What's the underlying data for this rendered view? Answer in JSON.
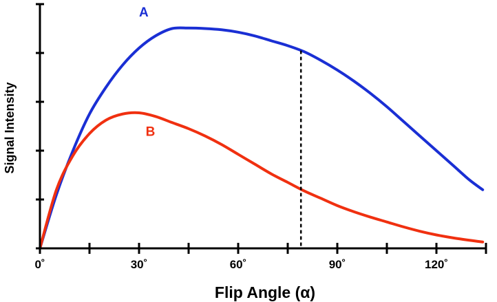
{
  "chart_data": {
    "type": "line",
    "xlabel": "Flip Angle (α)",
    "ylabel": "Signal Intensity",
    "xlim": [
      0,
      135
    ],
    "ylim": [
      0,
      100
    ],
    "x_ticks": [
      {
        "value": 0,
        "label": "0˚"
      },
      {
        "value": 30,
        "label": "30˚"
      },
      {
        "value": 60,
        "label": "60˚"
      },
      {
        "value": 90,
        "label": "90˚"
      },
      {
        "value": 120,
        "label": "120˚"
      }
    ],
    "x_minor_ticks": [
      15,
      45,
      75,
      105,
      135
    ],
    "y_ticks": [
      0,
      20,
      40,
      60,
      80,
      100
    ],
    "grid": false,
    "legend": "none",
    "series": [
      {
        "name": "A",
        "color": "#1a2fd4",
        "x": [
          0,
          5,
          10,
          15,
          20,
          25,
          30,
          35,
          40,
          45,
          50,
          55,
          60,
          65,
          70,
          75,
          80,
          85,
          90,
          95,
          100,
          105,
          110,
          115,
          120,
          125,
          130,
          134
        ],
        "values": [
          0,
          22,
          40,
          55,
          66,
          75,
          82,
          87,
          90,
          90.2,
          90,
          89.5,
          88.5,
          87,
          85,
          83,
          80.5,
          77,
          73,
          68.5,
          63.5,
          58,
          52,
          46,
          40,
          34,
          28,
          24
        ]
      },
      {
        "name": "B",
        "color": "#f03010",
        "x": [
          0,
          5,
          10,
          15,
          20,
          25,
          30,
          35,
          40,
          45,
          50,
          55,
          60,
          65,
          70,
          75,
          80,
          85,
          90,
          95,
          100,
          105,
          110,
          115,
          120,
          125,
          130,
          134
        ],
        "values": [
          0,
          24,
          38,
          47,
          52.5,
          55,
          55.5,
          54,
          51.5,
          49,
          46,
          42.5,
          38.5,
          34.5,
          30.5,
          27,
          23.5,
          20.5,
          17.5,
          15,
          12.8,
          10.8,
          8.8,
          7,
          5.5,
          4.3,
          3.3,
          2.6
        ]
      }
    ],
    "annotations": [
      {
        "type": "vertical-dashed-line",
        "x": 79,
        "from": "series-B",
        "to": "series-A"
      },
      {
        "type": "series-label",
        "series": "A",
        "text": "A",
        "x": 30,
        "y": 95
      },
      {
        "type": "series-label",
        "series": "B",
        "text": "B",
        "x": 32,
        "y": 46
      }
    ]
  }
}
